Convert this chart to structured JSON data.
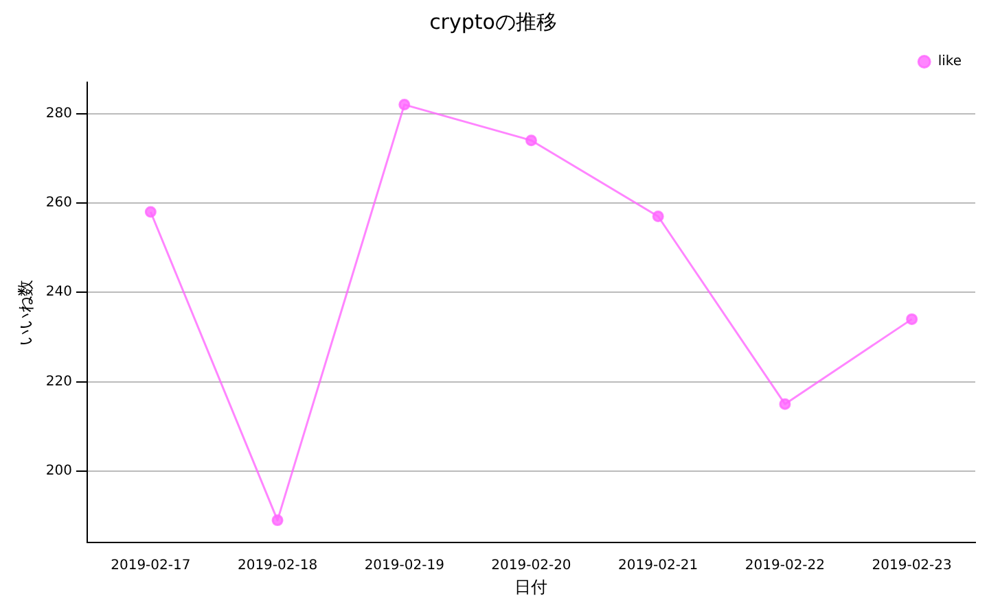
{
  "chart_data": {
    "type": "line",
    "title": "cryptoの推移",
    "xlabel": "日付",
    "ylabel": "いいね数",
    "categories": [
      "2019-02-17",
      "2019-02-18",
      "2019-02-19",
      "2019-02-20",
      "2019-02-21",
      "2019-02-22",
      "2019-02-23"
    ],
    "series": [
      {
        "name": "like",
        "color": "#ff66ff",
        "values": [
          258,
          189,
          282,
          274,
          257,
          215,
          234
        ]
      }
    ],
    "ylim": [
      184,
      287
    ],
    "yticks": [
      200,
      220,
      240,
      260,
      280
    ],
    "grid": "y",
    "legend": "top right",
    "marker": "circle",
    "line_style": "solid"
  }
}
